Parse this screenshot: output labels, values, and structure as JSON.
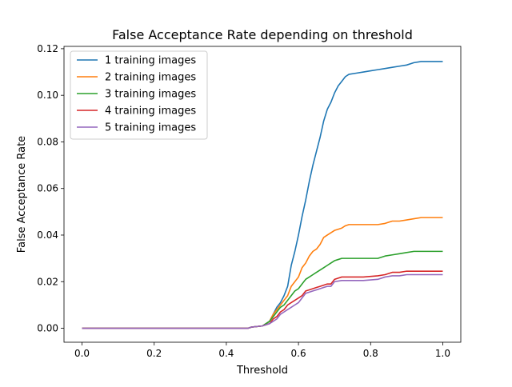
{
  "chart_data": {
    "type": "line",
    "title": "False Acceptance Rate depending on threshold",
    "xlabel": "Threshold",
    "ylabel": "False Acceptance Rate",
    "xlim": [
      -0.05,
      1.05
    ],
    "ylim": [
      -0.006,
      0.121
    ],
    "xticks": [
      0.0,
      0.2,
      0.4,
      0.6,
      0.8,
      1.0
    ],
    "xtick_labels": [
      "0.0",
      "0.2",
      "0.4",
      "0.6",
      "0.8",
      "1.0"
    ],
    "yticks": [
      0.0,
      0.02,
      0.04,
      0.06,
      0.08,
      0.1,
      0.12
    ],
    "ytick_labels": [
      "0.00",
      "0.02",
      "0.04",
      "0.06",
      "0.08",
      "0.10",
      "0.12"
    ],
    "grid": false,
    "legend_position": "top-left",
    "series": [
      {
        "name": "1 training images",
        "color": "#1f77b4",
        "points": [
          [
            0.0,
            0.0
          ],
          [
            0.46,
            0.0
          ],
          [
            0.47,
            0.0005
          ],
          [
            0.5,
            0.001
          ],
          [
            0.52,
            0.003
          ],
          [
            0.53,
            0.006
          ],
          [
            0.54,
            0.009
          ],
          [
            0.55,
            0.011
          ],
          [
            0.56,
            0.014
          ],
          [
            0.57,
            0.018
          ],
          [
            0.58,
            0.027
          ],
          [
            0.59,
            0.033
          ],
          [
            0.6,
            0.04
          ],
          [
            0.61,
            0.048
          ],
          [
            0.62,
            0.055
          ],
          [
            0.63,
            0.063
          ],
          [
            0.64,
            0.07
          ],
          [
            0.65,
            0.076
          ],
          [
            0.66,
            0.082
          ],
          [
            0.67,
            0.089
          ],
          [
            0.68,
            0.094
          ],
          [
            0.69,
            0.097
          ],
          [
            0.7,
            0.101
          ],
          [
            0.71,
            0.104
          ],
          [
            0.72,
            0.106
          ],
          [
            0.73,
            0.108
          ],
          [
            0.74,
            0.109
          ],
          [
            0.76,
            0.1095
          ],
          [
            0.78,
            0.11
          ],
          [
            0.8,
            0.1105
          ],
          [
            0.82,
            0.111
          ],
          [
            0.84,
            0.1115
          ],
          [
            0.86,
            0.112
          ],
          [
            0.88,
            0.1125
          ],
          [
            0.9,
            0.113
          ],
          [
            0.92,
            0.114
          ],
          [
            0.94,
            0.1145
          ],
          [
            0.96,
            0.1145
          ],
          [
            1.0,
            0.1145
          ]
        ]
      },
      {
        "name": "2 training images",
        "color": "#ff7f0e",
        "points": [
          [
            0.0,
            0.0
          ],
          [
            0.46,
            0.0
          ],
          [
            0.47,
            0.0005
          ],
          [
            0.5,
            0.001
          ],
          [
            0.52,
            0.003
          ],
          [
            0.53,
            0.006
          ],
          [
            0.54,
            0.008
          ],
          [
            0.55,
            0.01
          ],
          [
            0.56,
            0.012
          ],
          [
            0.57,
            0.014
          ],
          [
            0.58,
            0.018
          ],
          [
            0.59,
            0.02
          ],
          [
            0.6,
            0.022
          ],
          [
            0.61,
            0.026
          ],
          [
            0.62,
            0.028
          ],
          [
            0.63,
            0.031
          ],
          [
            0.64,
            0.033
          ],
          [
            0.65,
            0.034
          ],
          [
            0.66,
            0.036
          ],
          [
            0.67,
            0.039
          ],
          [
            0.68,
            0.04
          ],
          [
            0.69,
            0.041
          ],
          [
            0.7,
            0.042
          ],
          [
            0.71,
            0.0425
          ],
          [
            0.72,
            0.043
          ],
          [
            0.73,
            0.044
          ],
          [
            0.74,
            0.0445
          ],
          [
            0.76,
            0.0445
          ],
          [
            0.8,
            0.0445
          ],
          [
            0.82,
            0.0445
          ],
          [
            0.84,
            0.045
          ],
          [
            0.86,
            0.046
          ],
          [
            0.88,
            0.046
          ],
          [
            0.9,
            0.0465
          ],
          [
            0.92,
            0.047
          ],
          [
            0.94,
            0.0475
          ],
          [
            1.0,
            0.0475
          ]
        ]
      },
      {
        "name": "3 training images",
        "color": "#2ca02c",
        "points": [
          [
            0.0,
            0.0
          ],
          [
            0.46,
            0.0
          ],
          [
            0.47,
            0.0005
          ],
          [
            0.5,
            0.001
          ],
          [
            0.52,
            0.003
          ],
          [
            0.53,
            0.005
          ],
          [
            0.54,
            0.007
          ],
          [
            0.55,
            0.009
          ],
          [
            0.56,
            0.01
          ],
          [
            0.57,
            0.012
          ],
          [
            0.58,
            0.014
          ],
          [
            0.59,
            0.016
          ],
          [
            0.6,
            0.017
          ],
          [
            0.61,
            0.019
          ],
          [
            0.62,
            0.021
          ],
          [
            0.63,
            0.022
          ],
          [
            0.64,
            0.023
          ],
          [
            0.65,
            0.024
          ],
          [
            0.66,
            0.025
          ],
          [
            0.67,
            0.026
          ],
          [
            0.68,
            0.027
          ],
          [
            0.69,
            0.028
          ],
          [
            0.7,
            0.029
          ],
          [
            0.71,
            0.0295
          ],
          [
            0.72,
            0.03
          ],
          [
            0.74,
            0.03
          ],
          [
            0.78,
            0.03
          ],
          [
            0.82,
            0.03
          ],
          [
            0.84,
            0.031
          ],
          [
            0.86,
            0.0315
          ],
          [
            0.88,
            0.032
          ],
          [
            0.9,
            0.0325
          ],
          [
            0.92,
            0.033
          ],
          [
            1.0,
            0.033
          ]
        ]
      },
      {
        "name": "4 training images",
        "color": "#d62728",
        "points": [
          [
            0.0,
            0.0
          ],
          [
            0.46,
            0.0
          ],
          [
            0.47,
            0.0005
          ],
          [
            0.5,
            0.001
          ],
          [
            0.52,
            0.002
          ],
          [
            0.53,
            0.004
          ],
          [
            0.54,
            0.005
          ],
          [
            0.55,
            0.007
          ],
          [
            0.56,
            0.008
          ],
          [
            0.57,
            0.01
          ],
          [
            0.58,
            0.011
          ],
          [
            0.59,
            0.012
          ],
          [
            0.6,
            0.013
          ],
          [
            0.61,
            0.014
          ],
          [
            0.62,
            0.016
          ],
          [
            0.63,
            0.0165
          ],
          [
            0.64,
            0.017
          ],
          [
            0.65,
            0.0175
          ],
          [
            0.66,
            0.018
          ],
          [
            0.67,
            0.0185
          ],
          [
            0.68,
            0.019
          ],
          [
            0.69,
            0.019
          ],
          [
            0.7,
            0.021
          ],
          [
            0.71,
            0.0215
          ],
          [
            0.72,
            0.022
          ],
          [
            0.74,
            0.022
          ],
          [
            0.78,
            0.022
          ],
          [
            0.82,
            0.0225
          ],
          [
            0.84,
            0.023
          ],
          [
            0.86,
            0.024
          ],
          [
            0.88,
            0.024
          ],
          [
            0.9,
            0.0245
          ],
          [
            0.92,
            0.0245
          ],
          [
            1.0,
            0.0245
          ]
        ]
      },
      {
        "name": "5 training images",
        "color": "#9467bd",
        "points": [
          [
            0.0,
            0.0
          ],
          [
            0.46,
            0.0
          ],
          [
            0.47,
            0.0005
          ],
          [
            0.5,
            0.001
          ],
          [
            0.52,
            0.002
          ],
          [
            0.53,
            0.003
          ],
          [
            0.54,
            0.004
          ],
          [
            0.55,
            0.006
          ],
          [
            0.56,
            0.007
          ],
          [
            0.57,
            0.008
          ],
          [
            0.58,
            0.009
          ],
          [
            0.59,
            0.01
          ],
          [
            0.6,
            0.011
          ],
          [
            0.61,
            0.013
          ],
          [
            0.62,
            0.015
          ],
          [
            0.63,
            0.0155
          ],
          [
            0.64,
            0.016
          ],
          [
            0.65,
            0.0165
          ],
          [
            0.66,
            0.017
          ],
          [
            0.67,
            0.0175
          ],
          [
            0.68,
            0.018
          ],
          [
            0.69,
            0.018
          ],
          [
            0.7,
            0.02
          ],
          [
            0.72,
            0.0205
          ],
          [
            0.74,
            0.0205
          ],
          [
            0.78,
            0.0205
          ],
          [
            0.82,
            0.021
          ],
          [
            0.84,
            0.022
          ],
          [
            0.86,
            0.0225
          ],
          [
            0.88,
            0.0225
          ],
          [
            0.9,
            0.023
          ],
          [
            1.0,
            0.023
          ]
        ]
      }
    ]
  }
}
